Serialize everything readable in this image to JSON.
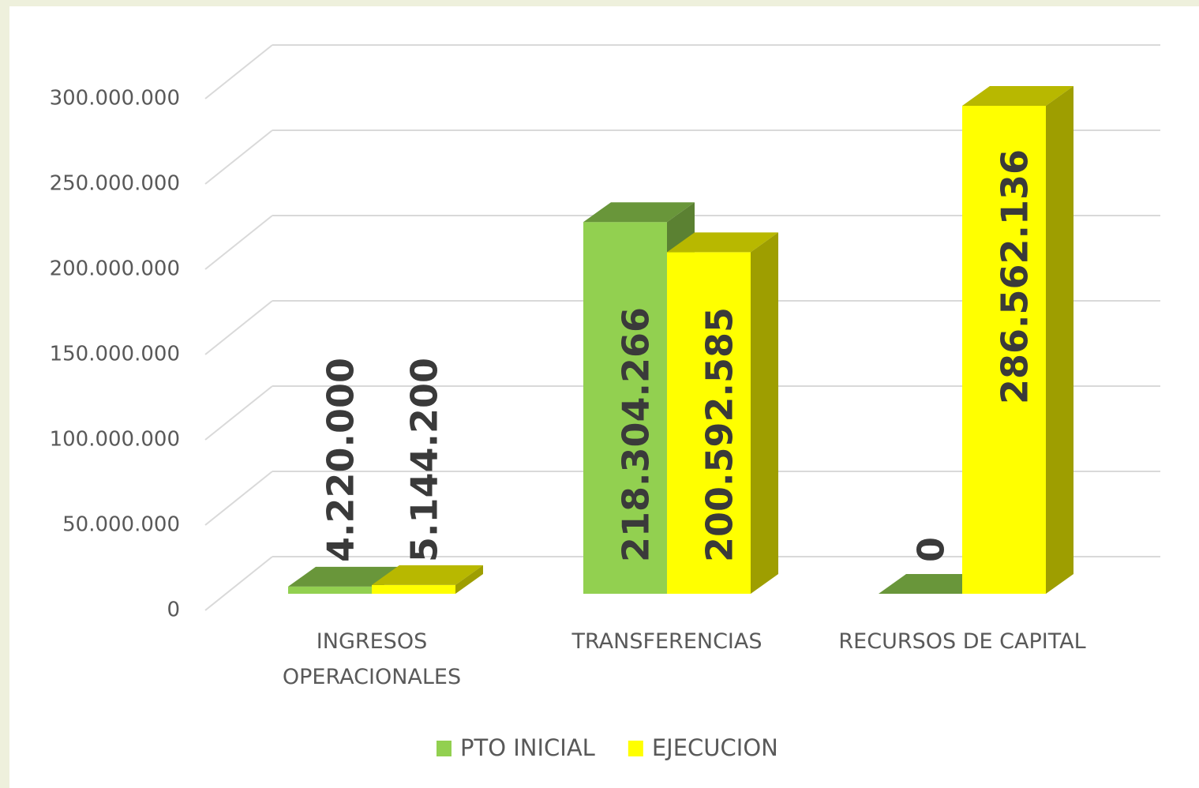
{
  "chart_data": {
    "type": "bar3d",
    "categories": [
      "INGRESOS OPERACIONALES",
      "TRANSFERENCIAS",
      "RECURSOS DE CAPITAL"
    ],
    "series": [
      {
        "name": "PTO INICIAL",
        "color": "#92d050",
        "values": [
          4220000,
          218304266,
          0
        ],
        "value_labels": [
          "4.220.000",
          "218.304.266",
          "0"
        ]
      },
      {
        "name": "EJECUCION",
        "color": "#ffff00",
        "values": [
          5144200,
          200592585,
          286562136
        ],
        "value_labels": [
          "5.144.200",
          "200.592.585",
          "286.562.136"
        ]
      }
    ],
    "ylim": [
      0,
      300000000
    ],
    "yticks": [
      {
        "value": 0,
        "label": "0"
      },
      {
        "value": 50000000,
        "label": "50.000.000"
      },
      {
        "value": 100000000,
        "label": "100.000.000"
      },
      {
        "value": 150000000,
        "label": "150.000.000"
      },
      {
        "value": 200000000,
        "label": "200.000.000"
      },
      {
        "value": 250000000,
        "label": "250.000.000"
      },
      {
        "value": 300000000,
        "label": "300.000.000"
      }
    ],
    "grid": true,
    "legend": "bottom"
  }
}
